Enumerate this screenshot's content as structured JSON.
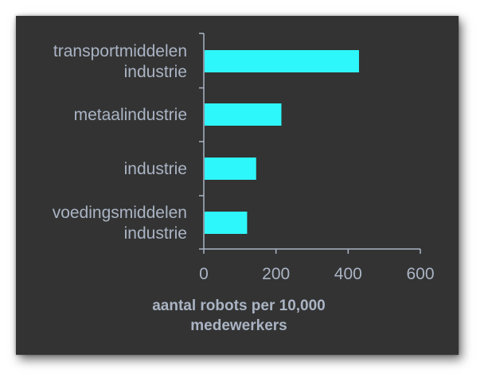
{
  "chart_data": {
    "type": "bar",
    "orientation": "horizontal",
    "categories": [
      [
        "transportmiddelen",
        "industrie"
      ],
      [
        "metaalindustrie"
      ],
      [
        "industrie"
      ],
      [
        "voedingsmiddelen",
        "industrie"
      ]
    ],
    "values": [
      430,
      215,
      145,
      120
    ],
    "xlabel": [
      "aantal robots per 10,000",
      "medewerkers"
    ],
    "xlim": [
      0,
      600
    ],
    "xticks": [
      0,
      200,
      400,
      600
    ],
    "grid": false,
    "colors": {
      "bar": "#2ef7fb",
      "axis": "#aab4c4",
      "text": "#aab4c4",
      "background": "#333333"
    }
  }
}
